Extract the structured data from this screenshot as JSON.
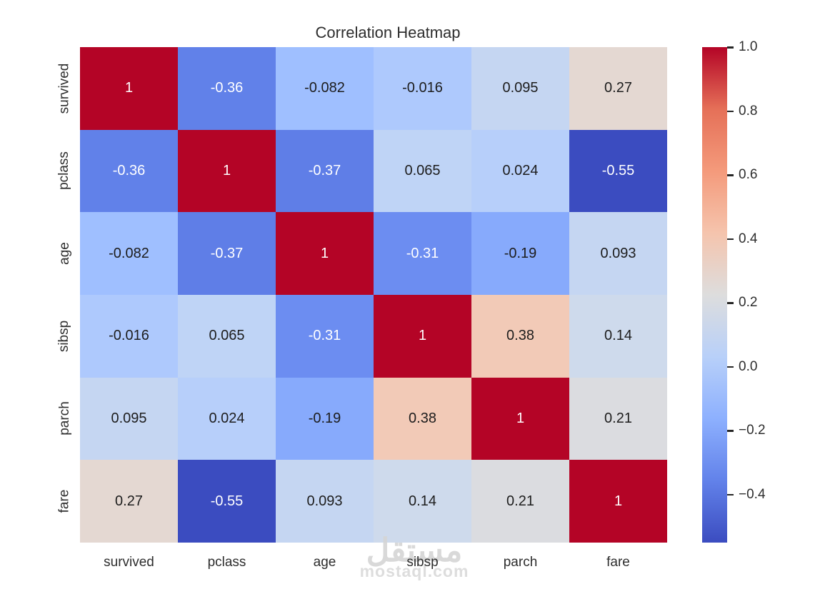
{
  "chart_data": {
    "type": "heatmap",
    "title": "Correlation Heatmap",
    "categories": [
      "survived",
      "pclass",
      "age",
      "sibsp",
      "parch",
      "fare"
    ],
    "matrix": [
      [
        1,
        -0.36,
        -0.082,
        -0.016,
        0.095,
        0.27
      ],
      [
        -0.36,
        1,
        -0.37,
        0.065,
        0.024,
        -0.55
      ],
      [
        -0.082,
        -0.37,
        1,
        -0.31,
        -0.19,
        0.093
      ],
      [
        -0.016,
        0.065,
        -0.31,
        1,
        0.38,
        0.14
      ],
      [
        0.095,
        0.024,
        -0.19,
        0.38,
        1,
        0.21
      ],
      [
        0.27,
        -0.55,
        0.093,
        0.14,
        0.21,
        1
      ]
    ],
    "cell_labels": [
      [
        "1",
        "-0.36",
        "-0.082",
        "-0.016",
        "0.095",
        "0.27"
      ],
      [
        "-0.36",
        "1",
        "-0.37",
        "0.065",
        "0.024",
        "-0.55"
      ],
      [
        "-0.082",
        "-0.37",
        "1",
        "-0.31",
        "-0.19",
        "0.093"
      ],
      [
        "-0.016",
        "0.065",
        "-0.31",
        "1",
        "0.38",
        "0.14"
      ],
      [
        "0.095",
        "0.024",
        "-0.19",
        "0.38",
        "1",
        "0.21"
      ],
      [
        "0.27",
        "-0.55",
        "0.093",
        "0.14",
        "0.21",
        "1"
      ]
    ],
    "cell_colors": [
      [
        "#B40426",
        "#6181E9",
        "#9FBFFF",
        "#AEC9FD",
        "#C5D6F2",
        "#E4D8D2"
      ],
      [
        "#6181E9",
        "#B40426",
        "#5F7EE7",
        "#BFD4F6",
        "#B7CFFA",
        "#3B4CC0"
      ],
      [
        "#9FBFFF",
        "#5F7EE7",
        "#B40426",
        "#6C8DF1",
        "#87AAFC",
        "#C5D6F2"
      ],
      [
        "#AEC9FD",
        "#BFD4F6",
        "#6C8DF1",
        "#B40426",
        "#F2CAB7",
        "#CEDAEC"
      ],
      [
        "#C5D6F2",
        "#B7CFFA",
        "#87AAFC",
        "#F2CAB7",
        "#B40426",
        "#DBDCE0"
      ],
      [
        "#E4D8D2",
        "#3B4CC0",
        "#C5D6F2",
        "#CEDAEC",
        "#DBDCE0",
        "#B40426"
      ]
    ],
    "cell_text_colors": [
      [
        "#FFFFFF",
        "#FFFFFF",
        "#1D1D1D",
        "#1D1D1D",
        "#1D1D1D",
        "#1D1D1D"
      ],
      [
        "#FFFFFF",
        "#FFFFFF",
        "#FFFFFF",
        "#1D1D1D",
        "#1D1D1D",
        "#FFFFFF"
      ],
      [
        "#1D1D1D",
        "#FFFFFF",
        "#FFFFFF",
        "#FFFFFF",
        "#1D1D1D",
        "#1D1D1D"
      ],
      [
        "#1D1D1D",
        "#1D1D1D",
        "#FFFFFF",
        "#FFFFFF",
        "#1D1D1D",
        "#1D1D1D"
      ],
      [
        "#1D1D1D",
        "#1D1D1D",
        "#1D1D1D",
        "#1D1D1D",
        "#FFFFFF",
        "#1D1D1D"
      ],
      [
        "#1D1D1D",
        "#FFFFFF",
        "#1D1D1D",
        "#1D1D1D",
        "#1D1D1D",
        "#FFFFFF"
      ]
    ],
    "colormap": "coolwarm",
    "vmin": -0.55,
    "vmax": 1.0,
    "grid": false,
    "colorbar": {
      "position": "right",
      "tick_labels": [
        "1.0",
        "0.8",
        "0.6",
        "0.4",
        "0.2",
        "0.0",
        "−0.2",
        "−0.4"
      ],
      "tick_values": [
        1.0,
        0.8,
        0.6,
        0.4,
        0.2,
        0.0,
        -0.2,
        -0.4
      ],
      "gradient_stops": [
        {
          "pos": 0.0,
          "color": "#B40426"
        },
        {
          "pos": 0.125,
          "color": "#E57058"
        },
        {
          "pos": 0.25,
          "color": "#F49A7B"
        },
        {
          "pos": 0.375,
          "color": "#F5C4AD"
        },
        {
          "pos": 0.5,
          "color": "#DDDDDD"
        },
        {
          "pos": 0.625,
          "color": "#B8D0F9"
        },
        {
          "pos": 0.75,
          "color": "#8DB0FE"
        },
        {
          "pos": 0.875,
          "color": "#6282EA"
        },
        {
          "pos": 1.0,
          "color": "#3B4CC0"
        }
      ]
    }
  },
  "watermark": {
    "arabic": "مستقل",
    "domain": "mostaql.com"
  },
  "colors": {
    "background": "#FFFFFF",
    "label_text": "#2E2E2E",
    "tick_mark": "#262626"
  }
}
